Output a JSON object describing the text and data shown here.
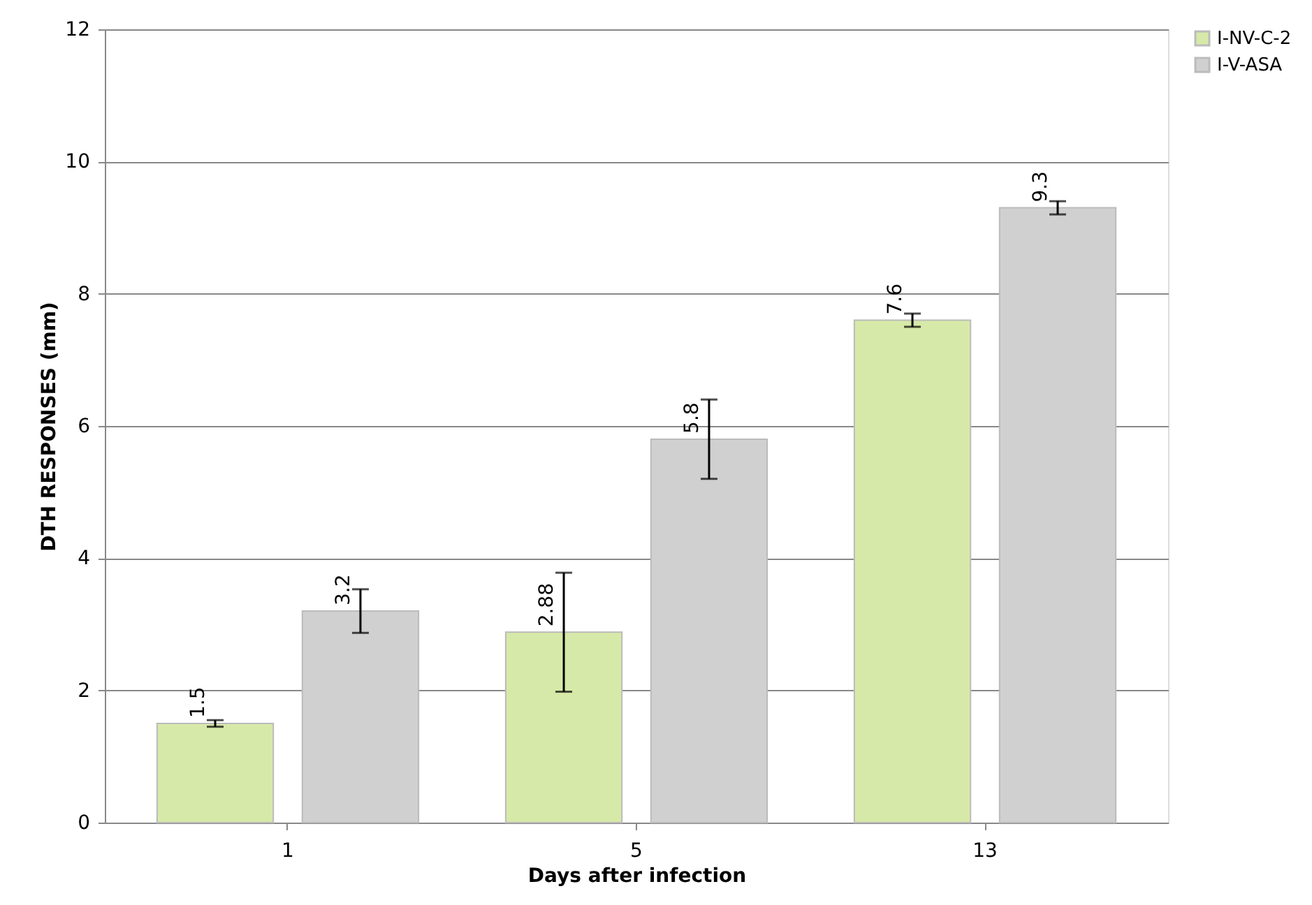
{
  "chart_data": {
    "type": "bar",
    "xlabel": "Days after infection",
    "ylabel": "DTH RESPONSES  (mm)",
    "categories": [
      "1",
      "5",
      "13"
    ],
    "series": [
      {
        "name": "I-NV-C-2",
        "color": "#d7e9a8",
        "values": [
          1.5,
          2.88,
          7.6
        ],
        "errors": [
          0.05,
          0.9,
          0.1
        ]
      },
      {
        "name": "I-V-ASA",
        "color": "#d0d0d0",
        "values": [
          3.2,
          5.8,
          9.3
        ],
        "errors": [
          0.33,
          0.6,
          0.1
        ]
      }
    ],
    "ylim": [
      0,
      12
    ],
    "yticks": [
      0,
      2,
      4,
      6,
      8,
      10,
      12
    ],
    "grid": "y",
    "legend": "right",
    "data_labels": true
  }
}
